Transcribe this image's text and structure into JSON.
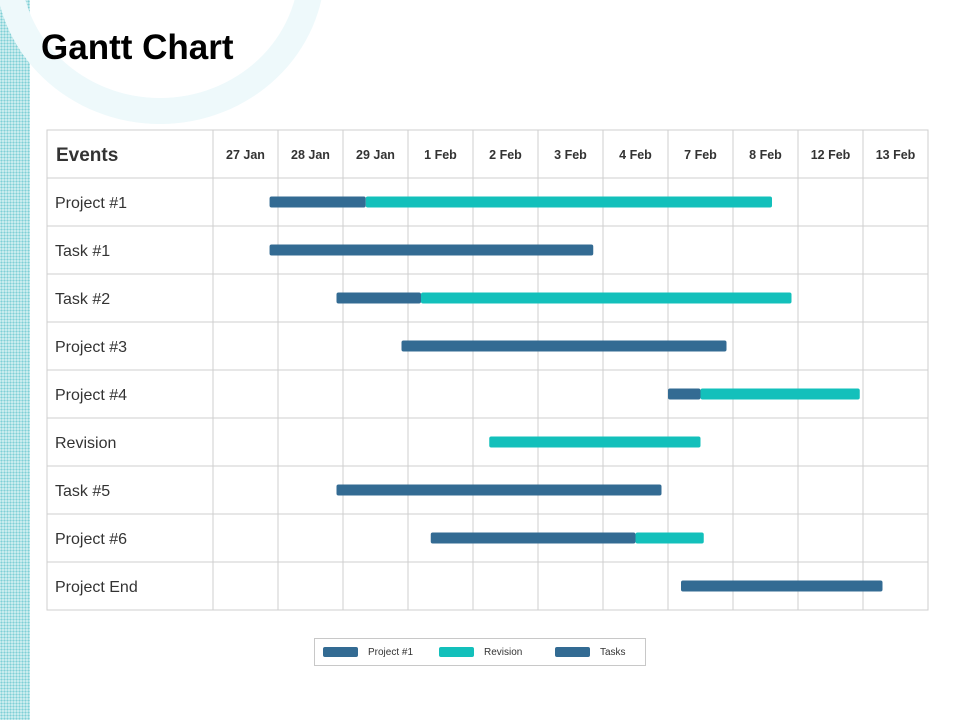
{
  "page": {
    "title": "Gantt Chart"
  },
  "chart_data": {
    "type": "gantt",
    "title": "Gantt Chart",
    "header_label": "Events",
    "columns": [
      "27 Jan",
      "28 Jan",
      "29 Jan",
      "1 Feb",
      "2 Feb",
      "3 Feb",
      "4 Feb",
      "7 Feb",
      "8 Feb",
      "12 Feb",
      "13 Feb"
    ],
    "colors": {
      "project": "#336b93",
      "revision": "#13c0bb",
      "tasks": "#336b93"
    },
    "rows": [
      {
        "label": "Project #1",
        "segments": [
          {
            "series": "Project #1",
            "start": 0.87,
            "end": 2.35
          },
          {
            "series": "Revision",
            "start": 2.35,
            "end": 8.6
          }
        ]
      },
      {
        "label": "Task #1",
        "segments": [
          {
            "series": "Tasks",
            "start": 0.87,
            "end": 5.85
          }
        ]
      },
      {
        "label": "Task #2",
        "segments": [
          {
            "series": "Project #1",
            "start": 1.9,
            "end": 3.2
          },
          {
            "series": "Revision",
            "start": 3.2,
            "end": 8.9
          }
        ]
      },
      {
        "label": "Project #3",
        "segments": [
          {
            "series": "Tasks",
            "start": 2.9,
            "end": 7.9
          }
        ]
      },
      {
        "label": "Project #4",
        "segments": [
          {
            "series": "Project #1",
            "start": 7.0,
            "end": 7.5
          },
          {
            "series": "Revision",
            "start": 7.5,
            "end": 9.95
          }
        ]
      },
      {
        "label": "Revision",
        "segments": [
          {
            "series": "Revision",
            "start": 4.25,
            "end": 7.5
          }
        ]
      },
      {
        "label": "Task #5",
        "segments": [
          {
            "series": "Tasks",
            "start": 1.9,
            "end": 6.9
          }
        ]
      },
      {
        "label": "Project #6",
        "segments": [
          {
            "series": "Project #1",
            "start": 3.35,
            "end": 6.5
          },
          {
            "series": "Revision",
            "start": 6.5,
            "end": 7.55
          }
        ]
      },
      {
        "label": "Project End",
        "segments": [
          {
            "series": "Tasks",
            "start": 7.2,
            "end": 10.3
          }
        ]
      }
    ],
    "legend": [
      {
        "name": "Project #1",
        "color": "#336b93"
      },
      {
        "name": "Revision",
        "color": "#13c0bb"
      },
      {
        "name": "Tasks",
        "color": "#336b93"
      }
    ]
  }
}
